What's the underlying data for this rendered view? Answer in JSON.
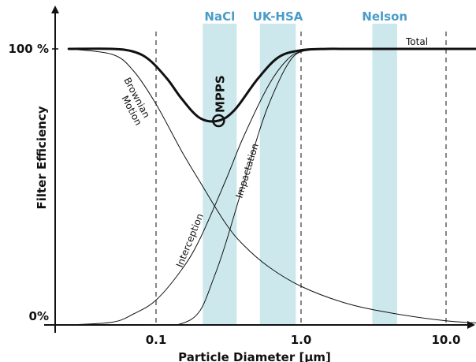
{
  "chart_data": {
    "type": "line",
    "title": "",
    "xlabel": "Particle Diameter [µm]",
    "ylabel": "Filter Efficiency",
    "x_scale": "log",
    "xlim": [
      0.025,
      20
    ],
    "ylim": [
      0,
      100
    ],
    "x_ticks": [
      {
        "value": 0.1,
        "label": "0.1"
      },
      {
        "value": 1.0,
        "label": "1.0"
      },
      {
        "value": 10.0,
        "label": "10.0"
      }
    ],
    "y_ticks": [
      {
        "value": 0,
        "label": "0%"
      },
      {
        "value": 100,
        "label": "100 %"
      }
    ],
    "grid": false,
    "reference_lines_x": [
      0.1,
      1.0,
      10.0
    ],
    "bands": [
      {
        "label": "NaCl",
        "x0": 0.21,
        "x1": 0.36,
        "color": "#cde8ec",
        "label_color": "#4a9cc9"
      },
      {
        "label": "UK-HSA",
        "x0": 0.52,
        "x1": 0.92,
        "color": "#cde8ec",
        "label_color": "#4a9cc9"
      },
      {
        "label": "Nelson",
        "x0": 3.1,
        "x1": 4.6,
        "color": "#cde8ec",
        "label_color": "#4a9cc9"
      }
    ],
    "series": [
      {
        "name": "Total",
        "emphasis": true,
        "color": "#111111",
        "x": [
          0.025,
          0.05,
          0.07,
          0.09,
          0.12,
          0.15,
          0.2,
          0.27,
          0.35,
          0.5,
          0.7,
          1.0,
          1.5,
          2,
          5,
          10,
          20
        ],
        "y": [
          100,
          100,
          99,
          96,
          89,
          82,
          75,
          74,
          78,
          89,
          97,
          99.5,
          100,
          100,
          100,
          100,
          100
        ]
      },
      {
        "name": "Brownian Motion",
        "emphasis": false,
        "color": "#111111",
        "x": [
          0.025,
          0.05,
          0.07,
          0.1,
          0.15,
          0.2,
          0.3,
          0.4,
          0.6,
          1.0,
          2,
          4,
          10,
          20
        ],
        "y": [
          100,
          98,
          92,
          80,
          63,
          52,
          37,
          29,
          21,
          14,
          8,
          4.5,
          1.5,
          0.5
        ]
      },
      {
        "name": "Interception",
        "emphasis": false,
        "color": "#111111",
        "x": [
          0.025,
          0.05,
          0.07,
          0.1,
          0.15,
          0.2,
          0.3,
          0.4,
          0.6,
          0.8,
          1.0,
          1.5,
          2,
          20
        ],
        "y": [
          0,
          1,
          4,
          9,
          20,
          31,
          52,
          68,
          87,
          96,
          99,
          100,
          100,
          100
        ]
      },
      {
        "name": "Impactation",
        "emphasis": false,
        "color": "#111111",
        "x": [
          0.025,
          0.1,
          0.15,
          0.2,
          0.25,
          0.3,
          0.4,
          0.5,
          0.6,
          0.8,
          1.0,
          1.5,
          2,
          20
        ],
        "y": [
          0,
          0,
          0.5,
          5,
          17,
          29,
          51,
          68,
          80,
          94,
          99,
          100,
          100,
          100
        ]
      }
    ],
    "annotations": [
      {
        "text": "MPPS",
        "x": 0.27,
        "y": 74,
        "marker": "circle"
      },
      {
        "text": "Total",
        "x": 2.8,
        "y": 100
      },
      {
        "text": "Brownian",
        "x": 0.07,
        "y": 94
      },
      {
        "text": "Motion",
        "x": 0.065,
        "y": 90
      },
      {
        "text": "Interception",
        "x": 0.2,
        "y": 30
      },
      {
        "text": "Impactation",
        "x": 0.42,
        "y": 55
      }
    ]
  }
}
